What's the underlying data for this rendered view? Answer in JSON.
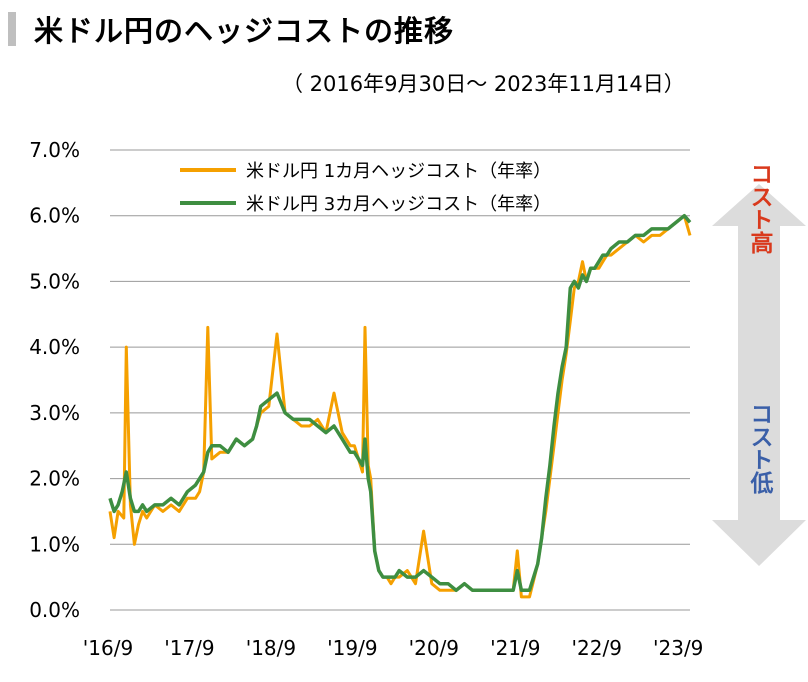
{
  "title": "米ドル円のヘッジコストの推移",
  "subtitle": "（ 2016年9月30日～ 2023年11月14日）",
  "colors": {
    "series1": "#f5a000",
    "series2": "#3e8e41",
    "up_text": "#d9391c",
    "down_text": "#3a5fa8",
    "arrow": "#dcdcdc",
    "grid": "#999999"
  },
  "arrow": {
    "up_label": "コスト高",
    "down_label": "コスト低"
  },
  "chart_data": {
    "type": "line",
    "title": "米ドル円のヘッジコストの推移",
    "ylabel": "",
    "xlabel": "",
    "ylim": [
      0,
      7
    ],
    "xlim": [
      2016.75,
      2023.87
    ],
    "y_ticks": [
      "0.0%",
      "1.0%",
      "2.0%",
      "3.0%",
      "4.0%",
      "5.0%",
      "6.0%",
      "7.0%"
    ],
    "y_tick_values": [
      0,
      1,
      2,
      3,
      4,
      5,
      6,
      7
    ],
    "x_ticks": [
      "'16/9",
      "'17/9",
      "'18/9",
      "'19/9",
      "'20/9",
      "'21/9",
      "'22/9",
      "'23/9"
    ],
    "x_tick_values": [
      2016.75,
      2017.75,
      2018.75,
      2019.75,
      2020.75,
      2021.75,
      2022.75,
      2023.75
    ],
    "grid": true,
    "legend_position": "top",
    "series": [
      {
        "name": "米ドル円 1カ月ヘッジコスト（年率）",
        "color": "#f5a000",
        "x": [
          2016.75,
          2016.8,
          2016.85,
          2016.92,
          2016.95,
          2017.0,
          2017.05,
          2017.1,
          2017.15,
          2017.2,
          2017.3,
          2017.4,
          2017.5,
          2017.6,
          2017.7,
          2017.8,
          2017.85,
          2017.9,
          2017.95,
          2018.0,
          2018.1,
          2018.2,
          2018.3,
          2018.4,
          2018.5,
          2018.55,
          2018.6,
          2018.7,
          2018.8,
          2018.9,
          2019.0,
          2019.1,
          2019.2,
          2019.3,
          2019.4,
          2019.5,
          2019.6,
          2019.7,
          2019.75,
          2019.8,
          2019.85,
          2019.88,
          2019.92,
          2019.95,
          2020.0,
          2020.05,
          2020.1,
          2020.15,
          2020.2,
          2020.25,
          2020.3,
          2020.4,
          2020.5,
          2020.6,
          2020.7,
          2020.8,
          2020.9,
          2021.0,
          2021.1,
          2021.2,
          2021.3,
          2021.4,
          2021.5,
          2021.6,
          2021.7,
          2021.75,
          2021.8,
          2021.9,
          2022.0,
          2022.05,
          2022.1,
          2022.15,
          2022.2,
          2022.25,
          2022.3,
          2022.35,
          2022.4,
          2022.45,
          2022.5,
          2022.55,
          2022.6,
          2022.65,
          2022.7,
          2022.75,
          2022.8,
          2022.85,
          2022.9,
          2023.0,
          2023.1,
          2023.2,
          2023.3,
          2023.4,
          2023.5,
          2023.6,
          2023.7,
          2023.8,
          2023.87
        ],
        "values": [
          1.5,
          1.1,
          1.5,
          1.4,
          4.0,
          1.6,
          1.0,
          1.3,
          1.5,
          1.4,
          1.6,
          1.5,
          1.6,
          1.5,
          1.7,
          1.7,
          1.8,
          2.1,
          4.3,
          2.3,
          2.4,
          2.4,
          2.6,
          2.5,
          2.6,
          2.8,
          3.0,
          3.1,
          4.2,
          3.0,
          2.9,
          2.8,
          2.8,
          2.9,
          2.7,
          3.3,
          2.7,
          2.5,
          2.5,
          2.3,
          2.1,
          4.3,
          2.2,
          2.0,
          0.9,
          0.6,
          0.5,
          0.5,
          0.4,
          0.5,
          0.5,
          0.6,
          0.4,
          1.2,
          0.4,
          0.3,
          0.3,
          0.3,
          0.4,
          0.3,
          0.3,
          0.3,
          0.3,
          0.3,
          0.3,
          0.9,
          0.2,
          0.2,
          0.7,
          1.1,
          1.5,
          2.0,
          2.5,
          3.0,
          3.5,
          3.9,
          4.4,
          4.9,
          5.0,
          5.3,
          5.0,
          5.2,
          5.2,
          5.2,
          5.3,
          5.4,
          5.4,
          5.5,
          5.6,
          5.7,
          5.6,
          5.7,
          5.7,
          5.8,
          5.9,
          6.0,
          5.7
        ]
      },
      {
        "name": "米ドル円 3カ月ヘッジコスト（年率）",
        "color": "#3e8e41",
        "x": [
          2016.75,
          2016.8,
          2016.85,
          2016.9,
          2016.95,
          2017.0,
          2017.05,
          2017.1,
          2017.15,
          2017.2,
          2017.3,
          2017.4,
          2017.5,
          2017.6,
          2017.7,
          2017.8,
          2017.85,
          2017.9,
          2017.95,
          2018.0,
          2018.1,
          2018.2,
          2018.3,
          2018.4,
          2018.5,
          2018.55,
          2018.6,
          2018.7,
          2018.8,
          2018.9,
          2019.0,
          2019.1,
          2019.2,
          2019.3,
          2019.4,
          2019.5,
          2019.6,
          2019.7,
          2019.75,
          2019.8,
          2019.85,
          2019.88,
          2019.92,
          2019.95,
          2020.0,
          2020.05,
          2020.1,
          2020.15,
          2020.2,
          2020.25,
          2020.3,
          2020.4,
          2020.5,
          2020.6,
          2020.7,
          2020.8,
          2020.9,
          2021.0,
          2021.1,
          2021.2,
          2021.3,
          2021.4,
          2021.5,
          2021.6,
          2021.7,
          2021.75,
          2021.8,
          2021.9,
          2022.0,
          2022.05,
          2022.1,
          2022.15,
          2022.2,
          2022.25,
          2022.3,
          2022.35,
          2022.4,
          2022.45,
          2022.5,
          2022.55,
          2022.6,
          2022.65,
          2022.7,
          2022.75,
          2022.8,
          2022.85,
          2022.9,
          2023.0,
          2023.1,
          2023.2,
          2023.3,
          2023.4,
          2023.5,
          2023.6,
          2023.7,
          2023.8,
          2023.87
        ],
        "values": [
          1.7,
          1.5,
          1.6,
          1.8,
          2.1,
          1.7,
          1.5,
          1.5,
          1.6,
          1.5,
          1.6,
          1.6,
          1.7,
          1.6,
          1.8,
          1.9,
          2.0,
          2.1,
          2.4,
          2.5,
          2.5,
          2.4,
          2.6,
          2.5,
          2.6,
          2.8,
          3.1,
          3.2,
          3.3,
          3.0,
          2.9,
          2.9,
          2.9,
          2.8,
          2.7,
          2.8,
          2.6,
          2.4,
          2.4,
          2.3,
          2.2,
          2.6,
          2.0,
          1.8,
          0.9,
          0.6,
          0.5,
          0.5,
          0.5,
          0.5,
          0.6,
          0.5,
          0.5,
          0.6,
          0.5,
          0.4,
          0.4,
          0.3,
          0.4,
          0.3,
          0.3,
          0.3,
          0.3,
          0.3,
          0.3,
          0.6,
          0.3,
          0.3,
          0.7,
          1.1,
          1.7,
          2.2,
          2.8,
          3.3,
          3.7,
          4.0,
          4.9,
          5.0,
          4.9,
          5.1,
          5.0,
          5.2,
          5.2,
          5.3,
          5.4,
          5.4,
          5.5,
          5.6,
          5.6,
          5.7,
          5.7,
          5.8,
          5.8,
          5.8,
          5.9,
          6.0,
          5.9
        ]
      }
    ]
  }
}
